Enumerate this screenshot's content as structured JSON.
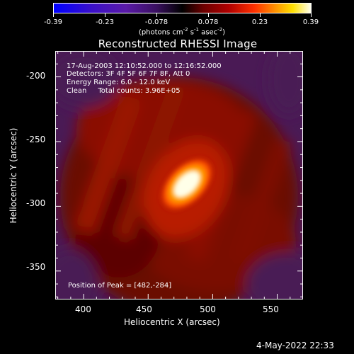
{
  "colorbar": {
    "tick_labels": [
      "-0.39",
      "-0.23",
      "-0.078",
      "0.078",
      "0.23",
      "0.39"
    ],
    "units_text": "(photons cm",
    "units_exp1": "-2",
    "units_mid": " s",
    "units_exp2": "-1",
    "units_mid2": " asec",
    "units_exp3": "-2",
    "units_end": ")"
  },
  "annotations": {
    "line1": "17-Aug-2003 12:10:52.000 to 12:16:52.000",
    "line2": "Detectors: 3F 4F 5F 6F 7F 8F, Att 0",
    "line3": "Energy Range: 6.0 - 12.0 keV",
    "line4_a": "Clean",
    "line4_b": "Total counts: 3.96E+05",
    "peak": "Position of Peak = [482,-284]"
  },
  "footer": {
    "date": "4-May-2022 22:33"
  },
  "chart_data": {
    "type": "heatmap",
    "title": "Reconstructed RHESSI Image",
    "xlabel": "Heliocentric X (arcsec)",
    "ylabel": "Heliocentric Y (arcsec)",
    "xlim": [
      378,
      570
    ],
    "ylim": [
      -372,
      -180
    ],
    "x_ticks": [
      400,
      450,
      500,
      550
    ],
    "y_ticks": [
      -200,
      -250,
      -300,
      -350
    ],
    "color_range": [
      -0.39,
      0.39
    ],
    "colormap": [
      "#0000ff",
      "#6a1aa0",
      "#000000",
      "#a00000",
      "#ff6000",
      "#ffe000",
      "#ffffff"
    ],
    "peak": {
      "x": 482,
      "y": -284
    },
    "grid": false
  }
}
